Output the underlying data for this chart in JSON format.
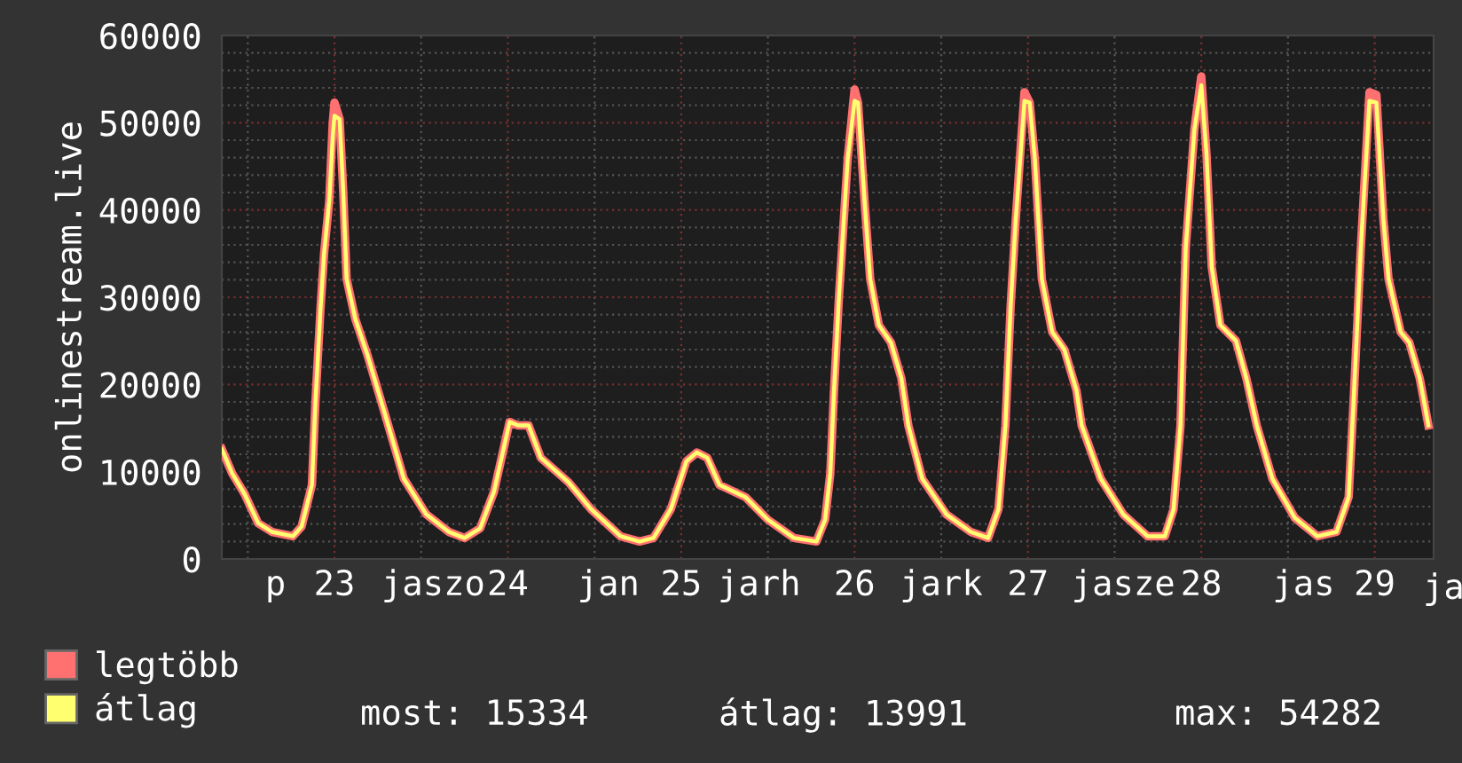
{
  "chart_data": {
    "type": "line",
    "ylabel": "onlinestream.live",
    "x": [
      22.35,
      22.41,
      22.48,
      22.56,
      22.64,
      22.76,
      22.81,
      22.87,
      22.89,
      22.92,
      22.94,
      22.97,
      22.99,
      23.0,
      23.03,
      23.05,
      23.07,
      23.12,
      23.19,
      23.29,
      23.4,
      23.53,
      23.66,
      23.75,
      23.84,
      23.92,
      24.01,
      24.06,
      24.12,
      24.19,
      24.35,
      24.48,
      24.65,
      24.76,
      24.84,
      24.94,
      25.03,
      25.09,
      25.15,
      25.22,
      25.37,
      25.5,
      25.65,
      25.78,
      25.83,
      25.86,
      25.88,
      25.91,
      25.96,
      26.0,
      26.02,
      26.06,
      26.09,
      26.14,
      26.21,
      26.27,
      26.31,
      26.39,
      26.53,
      26.67,
      26.77,
      26.83,
      26.87,
      26.9,
      26.93,
      26.98,
      27.01,
      27.04,
      27.08,
      27.14,
      27.21,
      27.28,
      27.31,
      27.42,
      27.55,
      27.69,
      27.79,
      27.84,
      27.88,
      27.91,
      27.96,
      28.0,
      28.03,
      28.06,
      28.11,
      28.2,
      28.26,
      28.32,
      28.41,
      28.54,
      28.67,
      28.78,
      28.85,
      28.88,
      28.92,
      28.97,
      29.01,
      29.05,
      29.08,
      29.15,
      29.2,
      29.26,
      29.31
    ],
    "series": [
      {
        "name": "legtöbb",
        "color": "#ff7070",
        "values": [
          12600,
          9800,
          7500,
          4100,
          3100,
          2600,
          3700,
          8500,
          17900,
          28900,
          35000,
          41100,
          50000,
          52300,
          50400,
          42300,
          32100,
          27500,
          23400,
          16700,
          9200,
          5100,
          3100,
          2400,
          3500,
          7700,
          15700,
          15300,
          15300,
          11600,
          8800,
          5700,
          2600,
          2000,
          2400,
          5700,
          11200,
          12200,
          11600,
          8500,
          7100,
          4500,
          2400,
          2000,
          4500,
          9800,
          18700,
          30100,
          45800,
          53800,
          52300,
          40300,
          32100,
          26800,
          24800,
          20700,
          15300,
          9200,
          5100,
          3100,
          2400,
          5700,
          15300,
          28900,
          39000,
          53500,
          52300,
          45800,
          32100,
          26000,
          24000,
          19300,
          15300,
          9200,
          5100,
          2600,
          2600,
          5700,
          15300,
          35600,
          49200,
          55300,
          46400,
          33500,
          26800,
          25000,
          20700,
          15300,
          9200,
          4700,
          2600,
          3100,
          7100,
          18700,
          35600,
          53500,
          53200,
          39000,
          32100,
          26000,
          24800,
          20700,
          15300
        ]
      },
      {
        "name": "átlag",
        "color": "#ffff70",
        "values": [
          12600,
          9800,
          7500,
          4100,
          3100,
          2600,
          3700,
          8500,
          17900,
          28900,
          35000,
          41100,
          48400,
          50800,
          50400,
          42300,
          32100,
          27500,
          23400,
          16700,
          9200,
          5100,
          3100,
          2400,
          3500,
          7700,
          15700,
          15300,
          15300,
          11600,
          8800,
          5700,
          2600,
          2000,
          2400,
          5700,
          11200,
          12200,
          11600,
          8500,
          7100,
          4500,
          2400,
          2000,
          4500,
          9800,
          18700,
          30100,
          45800,
          52500,
          52300,
          40300,
          32100,
          26800,
          24800,
          20700,
          15300,
          9200,
          5100,
          3100,
          2400,
          5700,
          15300,
          28900,
          39000,
          52500,
          52300,
          45800,
          32100,
          26000,
          24000,
          19300,
          15300,
          9200,
          5100,
          2600,
          2600,
          5700,
          15300,
          35600,
          49200,
          54300,
          46400,
          33500,
          26800,
          25000,
          20700,
          15300,
          9200,
          4700,
          2600,
          3100,
          7100,
          18700,
          35600,
          52500,
          52300,
          39000,
          32100,
          26000,
          24800,
          20700,
          15300
        ]
      }
    ],
    "xlim": [
      22.35,
      29.34
    ],
    "xticks": [
      {
        "value": 22.66,
        "label": "p"
      },
      23,
      {
        "value": 23.57,
        "label": "jaszo"
      },
      24,
      {
        "value": 24.58,
        "label": "jan"
      },
      25,
      {
        "value": 25.45,
        "label": "jarh"
      },
      26,
      {
        "value": 26.5,
        "label": "jark"
      },
      27,
      {
        "value": 27.55,
        "label": "jasze"
      },
      28,
      {
        "value": 28.59,
        "label": "jas"
      },
      29
    ],
    "ylim": [
      0,
      60000
    ],
    "yticks": [
      0,
      10000,
      20000,
      30000,
      40000,
      50000,
      60000
    ],
    "grid": true,
    "legend": "bottom left",
    "line_style": "solid",
    "marker": "none",
    "annotations": [
      "most: 15334",
      "átlag: 13991",
      "max: 54282",
      "ja"
    ]
  }
}
